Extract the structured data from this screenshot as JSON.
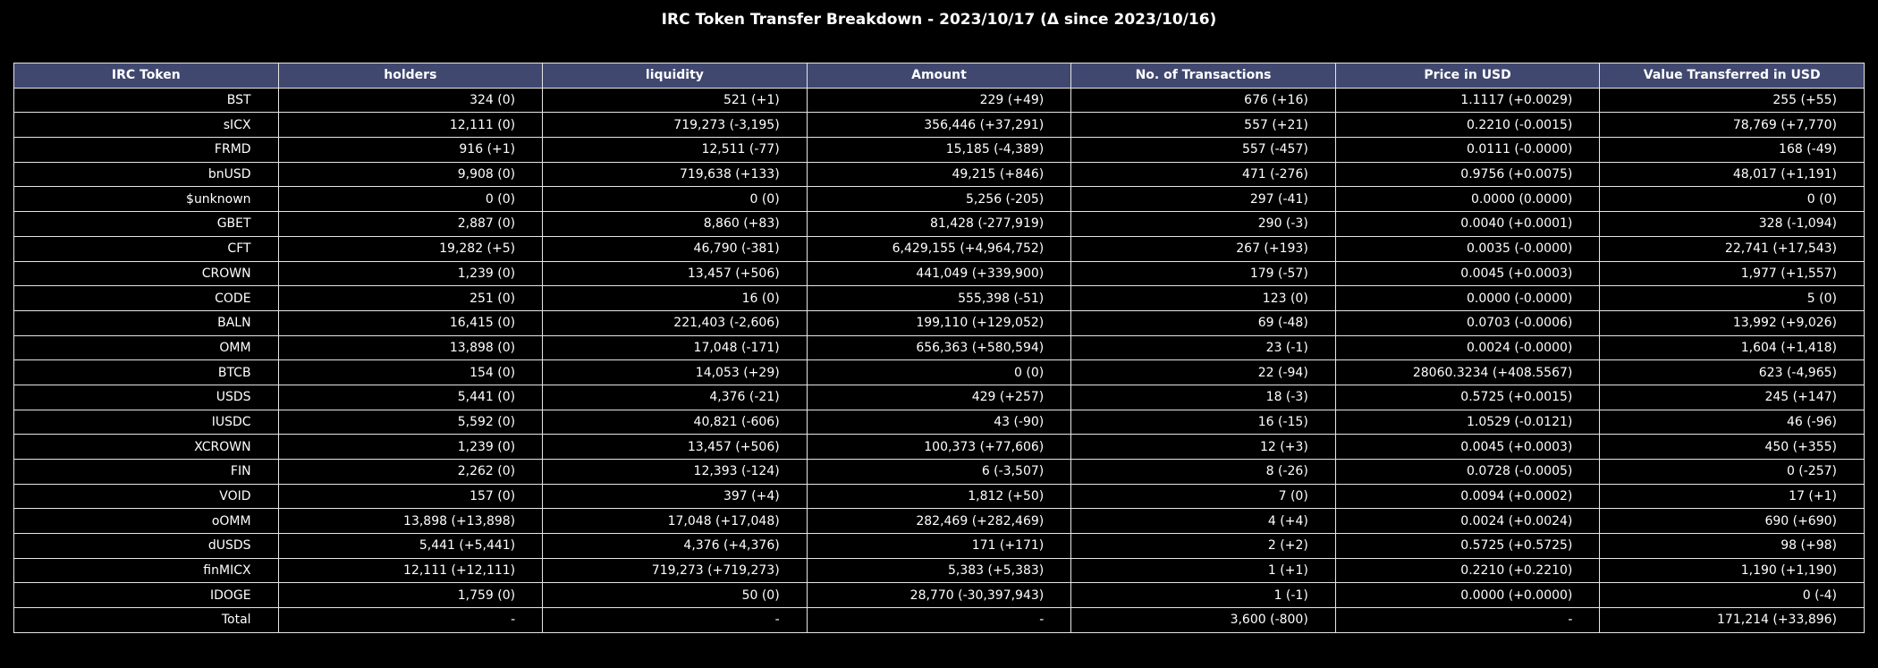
{
  "chart_data": {
    "type": "table",
    "title": "IRC Token Transfer Breakdown - 2023/10/17 (Δ since 2023/10/16)",
    "columns": [
      "IRC Token",
      "holders",
      "liquidity",
      "Amount",
      "No. of Transactions",
      "Price in USD",
      "Value Transferred in USD"
    ],
    "rows": [
      [
        "BST",
        "324 (0)",
        "521 (+1)",
        "229 (+49)",
        "676 (+16)",
        "1.1117 (+0.0029)",
        "255 (+55)"
      ],
      [
        "sICX",
        "12,111 (0)",
        "719,273 (-3,195)",
        "356,446 (+37,291)",
        "557 (+21)",
        "0.2210 (-0.0015)",
        "78,769 (+7,770)"
      ],
      [
        "FRMD",
        "916 (+1)",
        "12,511 (-77)",
        "15,185 (-4,389)",
        "557 (-457)",
        "0.0111 (-0.0000)",
        "168 (-49)"
      ],
      [
        "bnUSD",
        "9,908 (0)",
        "719,638 (+133)",
        "49,215 (+846)",
        "471 (-276)",
        "0.9756 (+0.0075)",
        "48,017 (+1,191)"
      ],
      [
        "$unknown",
        "0 (0)",
        "0 (0)",
        "5,256 (-205)",
        "297 (-41)",
        "0.0000 (0.0000)",
        "0 (0)"
      ],
      [
        "GBET",
        "2,887 (0)",
        "8,860 (+83)",
        "81,428 (-277,919)",
        "290 (-3)",
        "0.0040 (+0.0001)",
        "328 (-1,094)"
      ],
      [
        "CFT",
        "19,282 (+5)",
        "46,790 (-381)",
        "6,429,155 (+4,964,752)",
        "267 (+193)",
        "0.0035 (-0.0000)",
        "22,741 (+17,543)"
      ],
      [
        "CROWN",
        "1,239 (0)",
        "13,457 (+506)",
        "441,049 (+339,900)",
        "179 (-57)",
        "0.0045 (+0.0003)",
        "1,977 (+1,557)"
      ],
      [
        "CODE",
        "251 (0)",
        "16 (0)",
        "555,398 (-51)",
        "123 (0)",
        "0.0000 (-0.0000)",
        "5 (0)"
      ],
      [
        "BALN",
        "16,415 (0)",
        "221,403 (-2,606)",
        "199,110 (+129,052)",
        "69 (-48)",
        "0.0703 (-0.0006)",
        "13,992 (+9,026)"
      ],
      [
        "OMM",
        "13,898 (0)",
        "17,048 (-171)",
        "656,363 (+580,594)",
        "23 (-1)",
        "0.0024 (-0.0000)",
        "1,604 (+1,418)"
      ],
      [
        "BTCB",
        "154 (0)",
        "14,053 (+29)",
        "0 (0)",
        "22 (-94)",
        "28060.3234 (+408.5567)",
        "623 (-4,965)"
      ],
      [
        "USDS",
        "5,441 (0)",
        "4,376 (-21)",
        "429 (+257)",
        "18 (-3)",
        "0.5725 (+0.0015)",
        "245 (+147)"
      ],
      [
        "IUSDC",
        "5,592 (0)",
        "40,821 (-606)",
        "43 (-90)",
        "16 (-15)",
        "1.0529 (-0.0121)",
        "46 (-96)"
      ],
      [
        "XCROWN",
        "1,239 (0)",
        "13,457 (+506)",
        "100,373 (+77,606)",
        "12 (+3)",
        "0.0045 (+0.0003)",
        "450 (+355)"
      ],
      [
        "FIN",
        "2,262 (0)",
        "12,393 (-124)",
        "6 (-3,507)",
        "8 (-26)",
        "0.0728 (-0.0005)",
        "0 (-257)"
      ],
      [
        "VOID",
        "157 (0)",
        "397 (+4)",
        "1,812 (+50)",
        "7 (0)",
        "0.0094 (+0.0002)",
        "17 (+1)"
      ],
      [
        "oOMM",
        "13,898 (+13,898)",
        "17,048 (+17,048)",
        "282,469 (+282,469)",
        "4 (+4)",
        "0.0024 (+0.0024)",
        "690 (+690)"
      ],
      [
        "dUSDS",
        "5,441 (+5,441)",
        "4,376 (+4,376)",
        "171 (+171)",
        "2 (+2)",
        "0.5725 (+0.5725)",
        "98 (+98)"
      ],
      [
        "finMICX",
        "12,111 (+12,111)",
        "719,273 (+719,273)",
        "5,383 (+5,383)",
        "1 (+1)",
        "0.2210 (+0.2210)",
        "1,190 (+1,190)"
      ],
      [
        "IDOGE",
        "1,759 (0)",
        "50 (0)",
        "28,770 (-30,397,943)",
        "1 (-1)",
        "0.0000 (+0.0000)",
        "0 (-4)"
      ],
      [
        "Total",
        "-",
        "-",
        "-",
        "3,600 (-800)",
        "-",
        "171,214 (+33,896)"
      ]
    ],
    "colors": {
      "background": "#000000",
      "header_fill": "#404870",
      "grid_line": "#e6e6e6",
      "text": "#ffffff"
    }
  }
}
